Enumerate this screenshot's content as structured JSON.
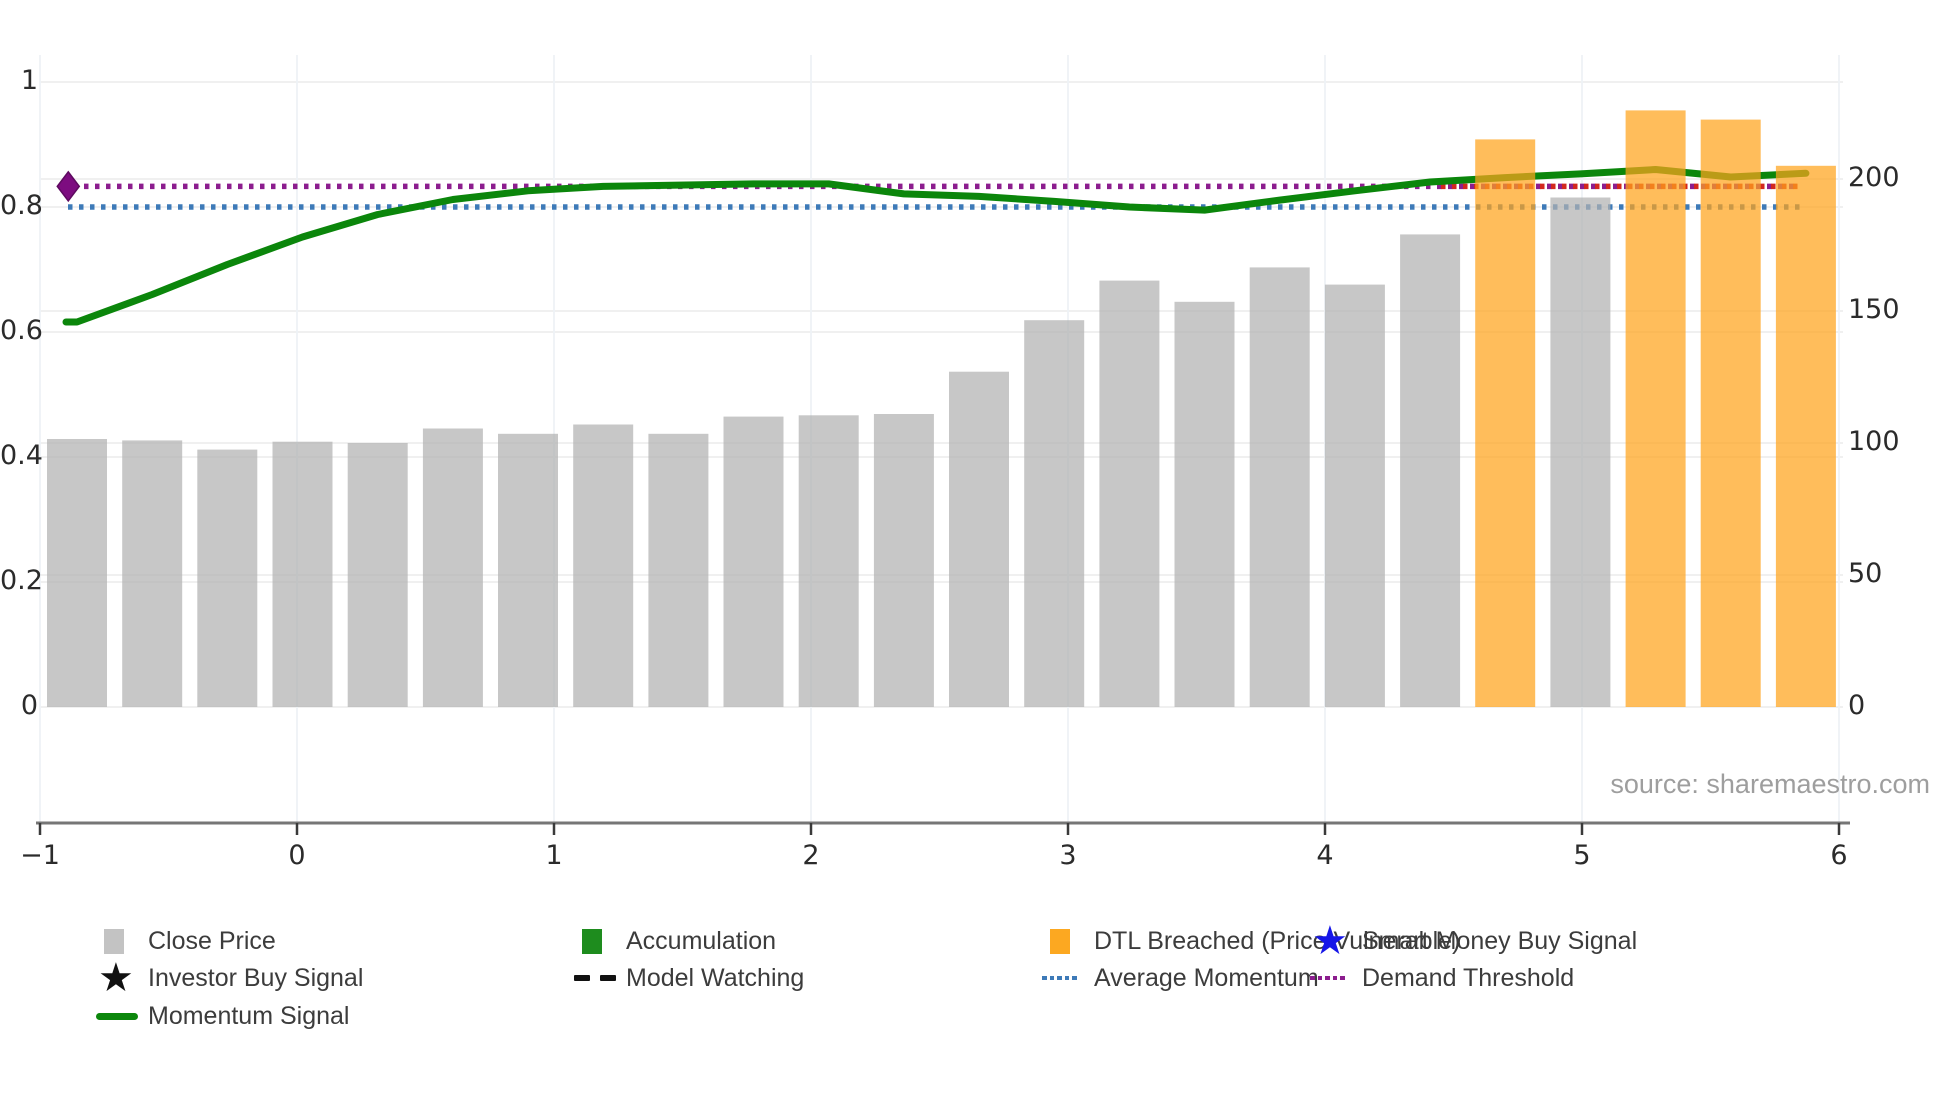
{
  "source_note": "source: sharemaestro.com",
  "colors": {
    "bar_gray": "#b2b2b2",
    "bar_orange": "#ffa41c",
    "bar_opacity": 0.72,
    "momentum_line": "#0b860b",
    "average_momentum_dotted": "#3d7ab8",
    "demand_threshold_dotted": "#8c1d8e",
    "breach_dotted": "#d2281e",
    "diamond_marker": "#7d0c80",
    "grid_h": "#ececec",
    "grid_v": "#eef2f6",
    "spine": "#767676",
    "tick_mark": "#3a3a3a",
    "tick_text": "#2b2b2b",
    "legend_text": "#3c3c3c",
    "source_text": "#9e9e9e"
  },
  "chart_data": {
    "type": "bar",
    "title": "",
    "grid": true,
    "legend_position": "bottom",
    "x_axis": {
      "ticks": [
        -1,
        0,
        1,
        2,
        3,
        4,
        5,
        6
      ],
      "range": [
        -1.1,
        6.1
      ]
    },
    "y_left_axis": {
      "ticks": [
        1,
        0.8,
        0.6,
        0.4,
        0.2,
        0
      ],
      "range": [
        0,
        1.16
      ]
    },
    "y_right_axis": {
      "ticks": [
        200,
        150,
        100,
        50,
        0
      ],
      "range": [
        0,
        268
      ]
    },
    "bars": {
      "name": "Close Price (right axis)",
      "prices": [
        101.5,
        101,
        97.5,
        100.5,
        100,
        105.5,
        103.5,
        107,
        103.5,
        110,
        110.5,
        111,
        127,
        146.5,
        161.5,
        153.5,
        166.5,
        160,
        179,
        215,
        193,
        226,
        222.5,
        205
      ],
      "status": [
        "close",
        "close",
        "close",
        "close",
        "close",
        "close",
        "close",
        "close",
        "close",
        "close",
        "close",
        "close",
        "close",
        "close",
        "close",
        "close",
        "close",
        "close",
        "close",
        "breached",
        "close",
        "breached",
        "breached",
        "breached"
      ]
    },
    "momentum_signal": {
      "name": "Momentum Signal (left axis)",
      "values": [
        0.616,
        0.66,
        0.708,
        0.752,
        0.788,
        0.812,
        0.826,
        0.833,
        0.835,
        0.837,
        0.837,
        0.821,
        0.817,
        0.809,
        0.8,
        0.795,
        0.811,
        0.826,
        0.84,
        0.847,
        0.853,
        0.86,
        0.848,
        0.854
      ]
    },
    "average_momentum": 0.8,
    "demand_threshold": 0.833,
    "breach_line": {
      "name": "DTL breached segment",
      "y": 0.833,
      "x_start": 4.43,
      "x_end": 5.86
    },
    "start_marker": {
      "shape": "diamond",
      "x": -0.89,
      "y": 0.833
    },
    "legend": [
      {
        "id": "close-price",
        "label": "Close Price",
        "swatch": "square",
        "color": "#c3c3c3"
      },
      {
        "id": "accumulation",
        "label": "Accumulation",
        "swatch": "square",
        "color": "#1e8c1e"
      },
      {
        "id": "dtl-breached",
        "label": "DTL Breached (Price Vulnerable)",
        "swatch": "square",
        "color": "#fca821"
      },
      {
        "id": "smart-money-buy-signal",
        "label": "Smart Money Buy Signal",
        "swatch": "star",
        "color": "#1616e8"
      },
      {
        "id": "investor-buy-signal",
        "label": "Investor Buy Signal",
        "swatch": "star",
        "color": "#111111"
      },
      {
        "id": "model-watching",
        "label": "Model Watching",
        "swatch": "dashes",
        "color": "#111111"
      },
      {
        "id": "average-momentum",
        "label": "Average Momentum",
        "swatch": "dots",
        "color": "#3d7ab8"
      },
      {
        "id": "demand-threshold",
        "label": "Demand Threshold",
        "swatch": "dots",
        "color": "#8c1d8e"
      },
      {
        "id": "momentum-signal",
        "label": "Momentum Signal",
        "swatch": "line",
        "color": "#0c870c"
      }
    ]
  }
}
